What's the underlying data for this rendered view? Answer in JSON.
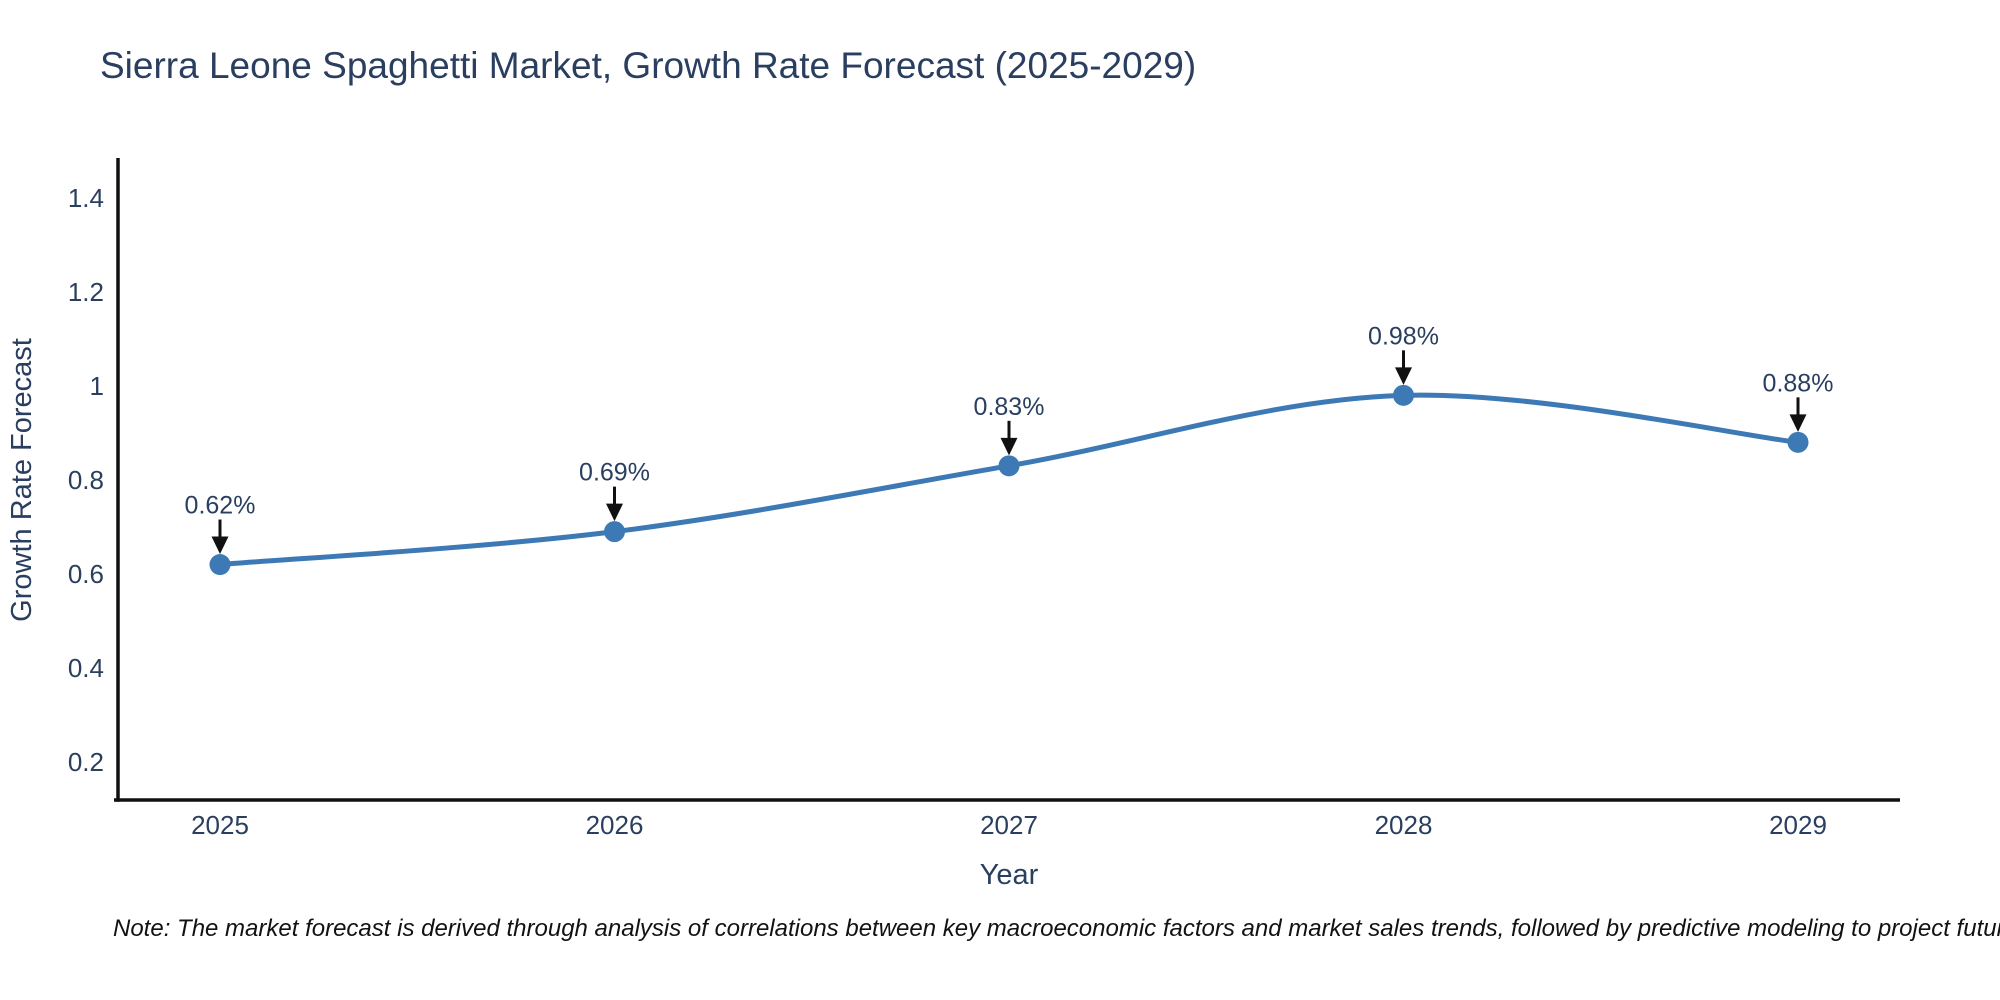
{
  "title": "Sierra Leone Spaghetti Market, Growth Rate Forecast (2025-2029)",
  "note": "Note: The market forecast is derived through analysis of correlations between key macroeconomic factors and market sales trends, followed by predictive modeling to project future sales",
  "chart_data": {
    "type": "line",
    "title": "Sierra Leone Spaghetti Market, Growth Rate Forecast (2025-2029)",
    "xlabel": "Year",
    "ylabel": "Growth Rate Forecast",
    "categories": [
      "2025",
      "2026",
      "2027",
      "2028",
      "2029"
    ],
    "values": [
      0.62,
      0.69,
      0.83,
      0.98,
      0.88
    ],
    "point_labels": [
      "0.62%",
      "0.69%",
      "0.83%",
      "0.98%",
      "0.88%"
    ],
    "yticks": [
      0.2,
      0.4,
      0.6,
      0.8,
      1,
      1.2,
      1.4
    ],
    "ytick_labels": [
      "0.2",
      "0.4",
      "0.6",
      "0.8",
      "1",
      "1.2",
      "1.4"
    ],
    "ylim": [
      0.119,
      1.485
    ],
    "grid": false,
    "legend": "none",
    "line_shape": "spline",
    "marker": "circle",
    "annotation_arrows": true,
    "colors": {
      "line": "#3d7ab5",
      "marker": "#3d7ab5",
      "axis": "#101010",
      "text": "#2a3f5f",
      "arrow": "#111111",
      "note": "#121212",
      "background": "#ffffff"
    }
  }
}
